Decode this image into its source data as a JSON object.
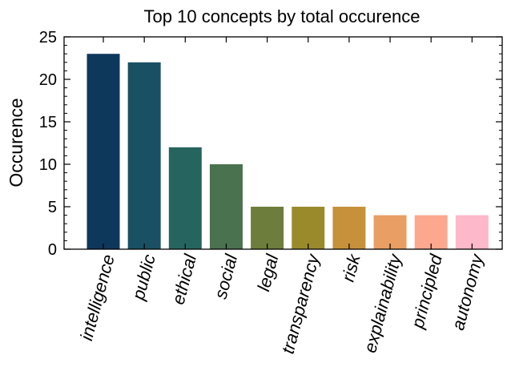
{
  "chart_data": {
    "type": "bar",
    "title": "Top 10 concepts by total occurence",
    "xlabel": "",
    "ylabel": "Occurence",
    "categories": [
      "intelligence",
      "public",
      "ethical",
      "social",
      "legal",
      "transparency",
      "risk",
      "explainability",
      "principled",
      "autonomy"
    ],
    "values": [
      23,
      22,
      12,
      10,
      5,
      5,
      5,
      4,
      4,
      4
    ],
    "colors": [
      "#0e375c",
      "#195063",
      "#26655f",
      "#4a724f",
      "#6d7d3b",
      "#9a8a2c",
      "#c7913b",
      "#e99e63",
      "#fba88f",
      "#fdb8c9"
    ],
    "ylim": [
      0,
      25
    ],
    "yticks": [
      0,
      5,
      10,
      15,
      20,
      25
    ],
    "grid": false,
    "legend": "none"
  }
}
